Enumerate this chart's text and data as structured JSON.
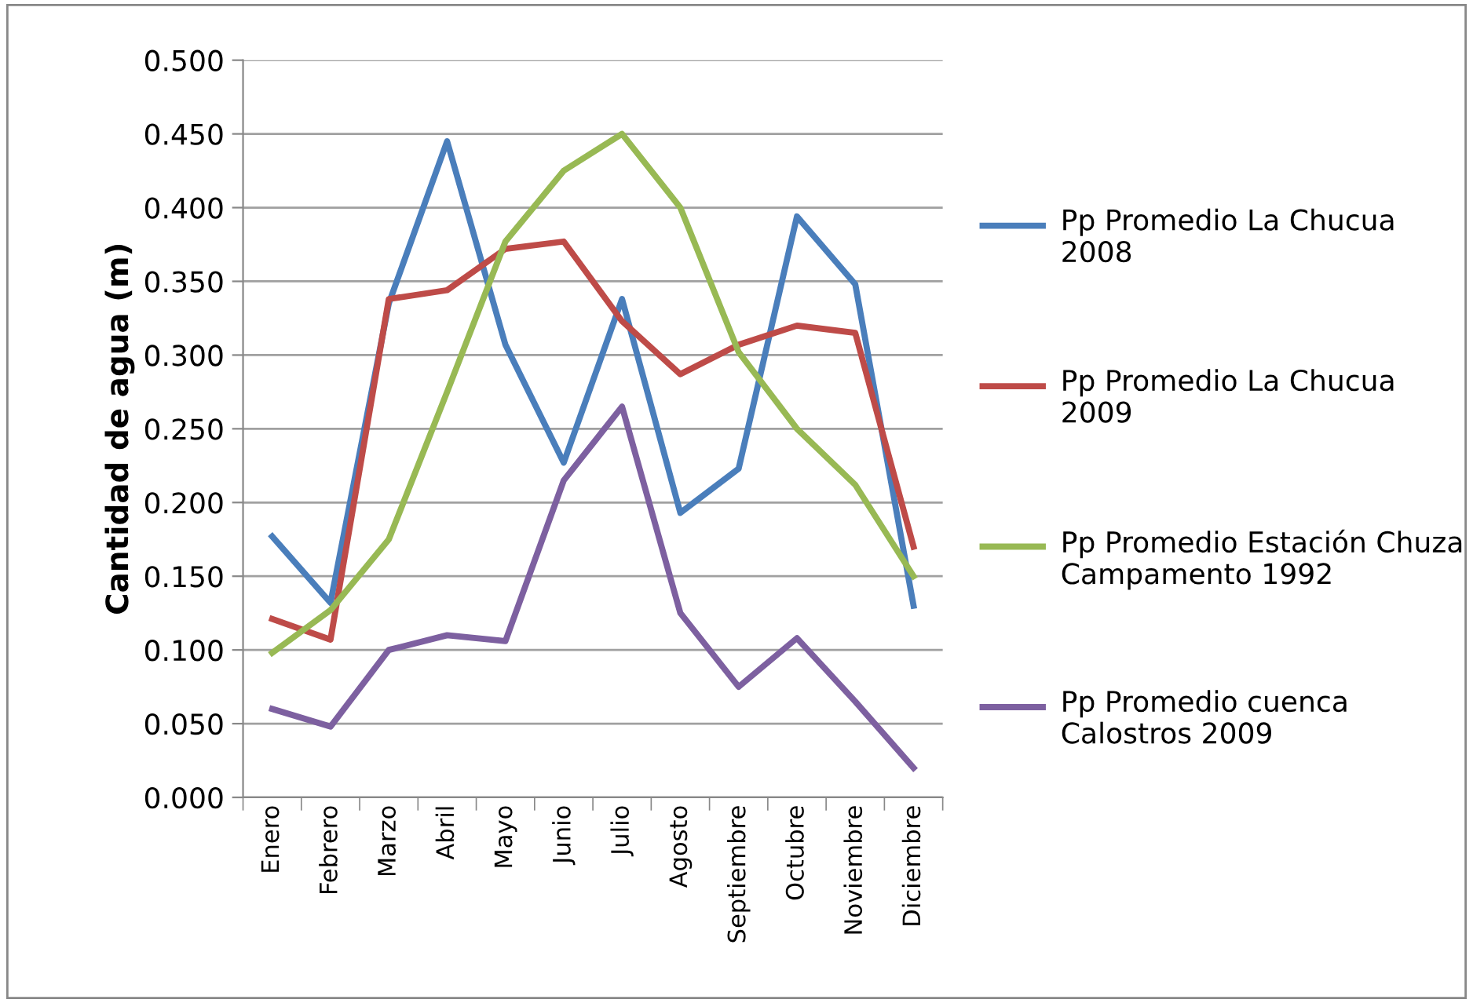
{
  "chart_data": {
    "type": "line",
    "ylabel": "Cantidad de agua (m)",
    "categories": [
      "Enero",
      "Febrero",
      "Marzo",
      "Abril",
      "Mayo",
      "Junio",
      "Julio",
      "Agosto",
      "Septiembre",
      "Octubre",
      "Noviembre",
      "Diciembre"
    ],
    "series": [
      {
        "name": "Pp Promedio La Chucua 2008",
        "color": "#4a7ebb",
        "values": [
          0.177,
          0.132,
          0.335,
          0.445,
          0.307,
          0.227,
          0.338,
          0.193,
          0.223,
          0.394,
          0.348,
          0.13
        ]
      },
      {
        "name": "Pp Promedio La Chucua 2009",
        "color": "#be4b48",
        "values": [
          0.121,
          0.107,
          0.338,
          0.344,
          0.372,
          0.377,
          0.323,
          0.287,
          0.307,
          0.32,
          0.315,
          0.17
        ]
      },
      {
        "name": "Pp Promedio Estación Chuza Campamento 1992",
        "color": "#98b954",
        "values": [
          0.098,
          0.127,
          0.175,
          0.275,
          0.377,
          0.425,
          0.45,
          0.4,
          0.302,
          0.25,
          0.212,
          0.15
        ]
      },
      {
        "name": "Pp Promedio cuenca Calostros 2009",
        "color": "#7d60a0",
        "values": [
          0.06,
          0.048,
          0.1,
          0.11,
          0.106,
          0.215,
          0.265,
          0.125,
          0.075,
          0.108,
          0.065,
          0.02
        ]
      }
    ],
    "ylim": [
      0,
      0.5
    ],
    "yticks": [
      {
        "value": 0,
        "label": "0.000"
      },
      {
        "value": 0.05,
        "label": "0.050"
      },
      {
        "value": 0.1,
        "label": "0.100"
      },
      {
        "value": 0.15,
        "label": "0.150"
      },
      {
        "value": 0.2,
        "label": "0.200"
      },
      {
        "value": 0.25,
        "label": "0.250"
      },
      {
        "value": 0.3,
        "label": "0.300"
      },
      {
        "value": 0.35,
        "label": "0.350"
      },
      {
        "value": 0.4,
        "label": "0.400"
      },
      {
        "value": 0.45,
        "label": "0.450"
      },
      {
        "value": 0.5,
        "label": "0.500"
      }
    ],
    "grid": "y",
    "legend": "right",
    "marker": "none",
    "line_style": "solid"
  }
}
